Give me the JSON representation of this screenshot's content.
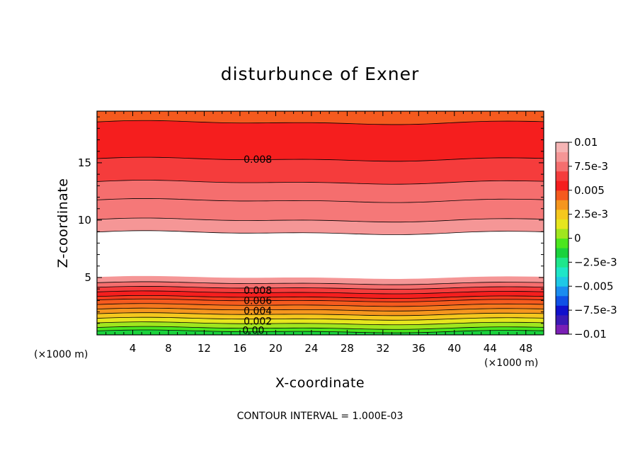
{
  "chart_data": {
    "type": "heatmap",
    "title": "disturbunce of Exner",
    "xlabel": "X-coordinate",
    "ylabel": "Z-coordinate",
    "x_unit_left": "(×1000 m)",
    "x_unit_right": "(×1000 m)",
    "xlim": [
      0,
      50
    ],
    "ylim": [
      0,
      19.5
    ],
    "xticks": [
      4,
      8,
      12,
      16,
      20,
      24,
      28,
      32,
      36,
      40,
      44,
      48
    ],
    "yticks": [
      5,
      10,
      15
    ],
    "contour_interval_text": "CONTOUR INTERVAL = 1.000E-03",
    "contour_labels": [
      {
        "text": "0.008",
        "x": 18,
        "z": 15.3
      },
      {
        "text": "0.008",
        "x": 18,
        "z": 3.9
      },
      {
        "text": "0.006",
        "x": 18,
        "z": 3.0
      },
      {
        "text": "0.004",
        "x": 18,
        "z": 2.1
      },
      {
        "text": "0.002",
        "x": 18,
        "z": 1.2
      },
      {
        "text": "0.00",
        "x": 17.5,
        "z": 0.4
      }
    ],
    "colorbar": {
      "range": [
        -0.01,
        0.01
      ],
      "labels": [
        {
          "text": "0.01",
          "value": 0.01
        },
        {
          "text": "7.5e-3",
          "value": 0.0075
        },
        {
          "text": "0.005",
          "value": 0.005
        },
        {
          "text": "2.5e-3",
          "value": 0.0025
        },
        {
          "text": "0",
          "value": 0
        },
        {
          "text": "−2.5e-3",
          "value": -0.0025
        },
        {
          "text": "−0.005",
          "value": -0.005
        },
        {
          "text": "−7.5e-3",
          "value": -0.0075
        },
        {
          "text": "−0.01",
          "value": -0.01
        }
      ],
      "colors": [
        "#7a1fb5",
        "#3a1ab5",
        "#1010cc",
        "#1050e6",
        "#1a8cf0",
        "#1ec8e6",
        "#1ee6c8",
        "#1ee68c",
        "#1ad23c",
        "#4be61e",
        "#a0e61e",
        "#e6e61e",
        "#f5c81e",
        "#f5961e",
        "#f55a1e",
        "#f51e1e",
        "#f53c3c",
        "#f56e6e",
        "#f59696",
        "#f5b4b4"
      ]
    },
    "upper_band_levels": [
      {
        "value": 0.0095,
        "color": "#f55a1e",
        "z_top": 19.5,
        "z_bottom": 18.5
      },
      {
        "value": 0.0085,
        "color": "#f51e1e",
        "z_top": 18.5,
        "z_bottom": 15.3
      },
      {
        "value": 0.0078,
        "color": "#f53c3c",
        "z_top": 15.3,
        "z_bottom": 13.3
      },
      {
        "value": 0.0072,
        "color": "#f56e6e",
        "z_top": 13.3,
        "z_bottom": 11.7
      },
      {
        "value": 0.0066,
        "color": "#f57878",
        "z_top": 11.7,
        "z_bottom": 10.0
      },
      {
        "value": 0.006,
        "color": "#f59696",
        "z_top": 10.0,
        "z_bottom": 8.9
      }
    ],
    "lower_band_levels": [
      {
        "value": 0.0062,
        "color": "#f59696",
        "z_top": 5.0,
        "z_bottom": 4.5
      },
      {
        "value": 0.0068,
        "color": "#f56e6e",
        "z_top": 4.5,
        "z_bottom": 4.1
      },
      {
        "value": 0.0075,
        "color": "#f53c3c",
        "z_top": 4.1,
        "z_bottom": 3.7
      },
      {
        "value": 0.008,
        "color": "#f51e1e",
        "z_top": 3.7,
        "z_bottom": 3.3
      },
      {
        "value": 0.0072,
        "color": "#f53c1e",
        "z_top": 3.3,
        "z_bottom": 3.0
      },
      {
        "value": 0.0065,
        "color": "#f55a1e",
        "z_top": 3.0,
        "z_bottom": 2.6
      },
      {
        "value": 0.006,
        "color": "#f5781e",
        "z_top": 2.6,
        "z_bottom": 2.2
      },
      {
        "value": 0.0052,
        "color": "#f5961e",
        "z_top": 2.2,
        "z_bottom": 1.8
      },
      {
        "value": 0.0045,
        "color": "#f5c81e",
        "z_top": 1.8,
        "z_bottom": 1.4
      },
      {
        "value": 0.0035,
        "color": "#e6e61e",
        "z_top": 1.4,
        "z_bottom": 1.0
      },
      {
        "value": 0.0025,
        "color": "#a0e61e",
        "z_top": 1.0,
        "z_bottom": 0.6
      },
      {
        "value": 0.0015,
        "color": "#4be61e",
        "z_top": 0.6,
        "z_bottom": 0.3
      },
      {
        "value": 0.0005,
        "color": "#1ad23c",
        "z_top": 0.3,
        "z_bottom": 0.0
      }
    ],
    "undefined_region": {
      "color": "#ffffff",
      "z_top": 8.9,
      "z_bottom": 5.0
    },
    "grid": false,
    "legend": "right"
  }
}
